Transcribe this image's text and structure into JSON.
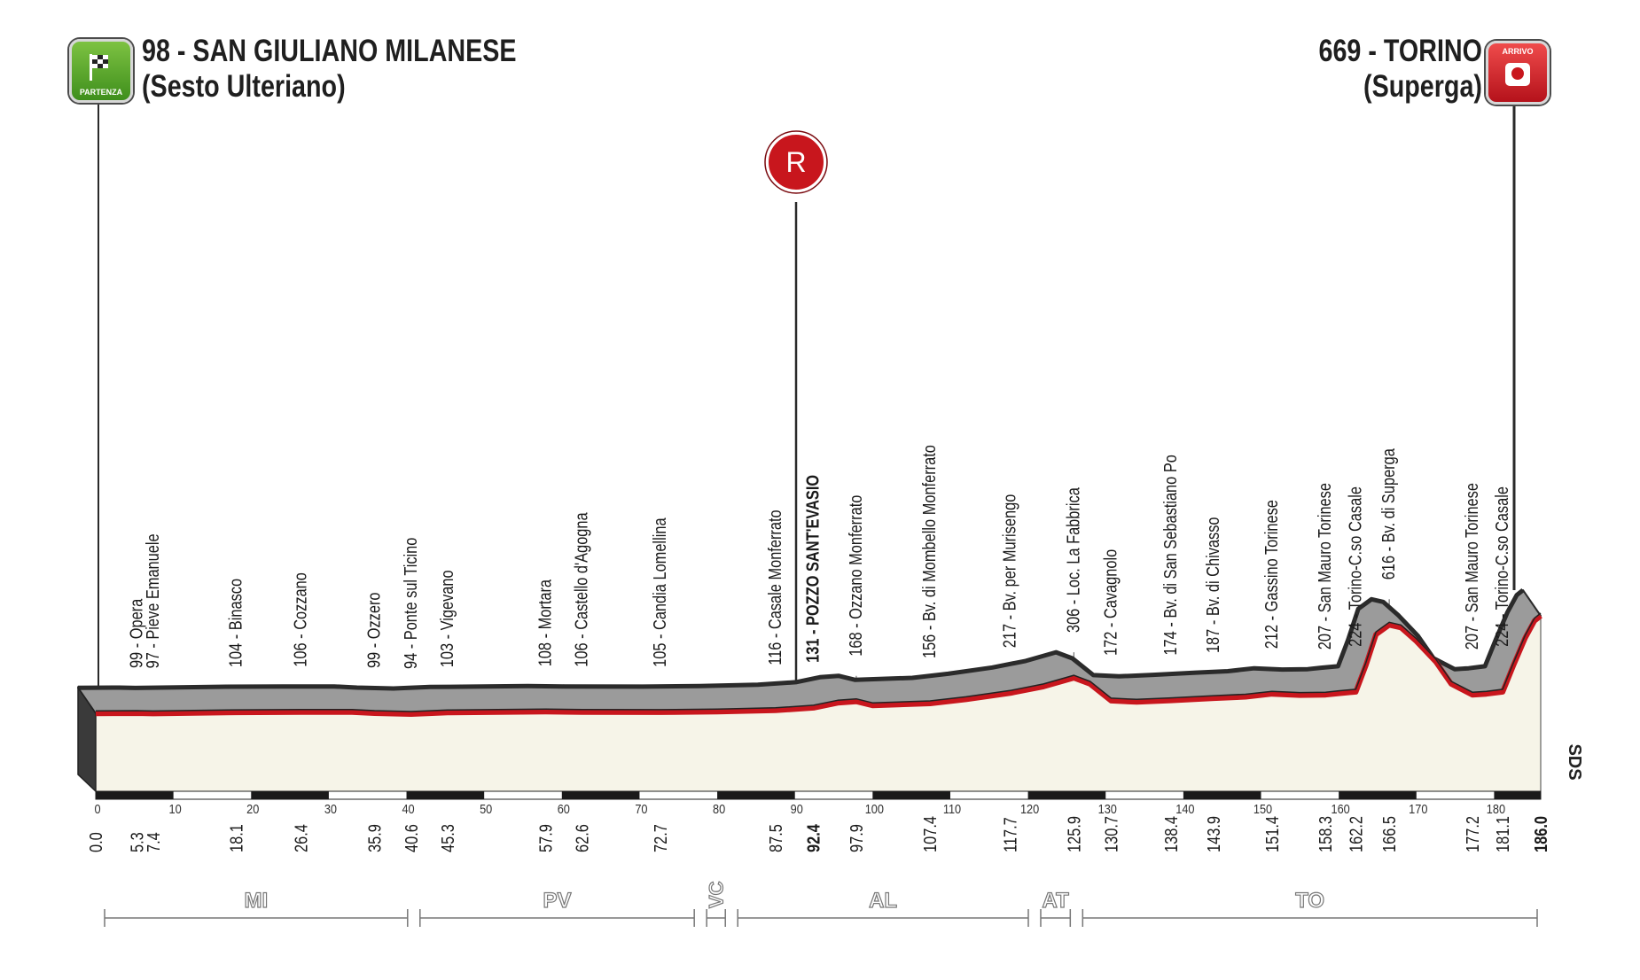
{
  "start": {
    "badge_label": "PARTENZA",
    "title": "98 - SAN GIULIANO MILANESE",
    "subtitle": "(Sesto Ulteriano)"
  },
  "finish": {
    "badge_label": "ARRIVO",
    "title": "669 - TORINO",
    "subtitle": "(Superga)"
  },
  "sprint_marker": {
    "letter": "R",
    "km": 92.4
  },
  "sds_label": "SDS",
  "colors": {
    "road_red": "#c8161d",
    "profile_gray": "#9b9b9b",
    "profile_dark": "#2b2b2b",
    "ground": "#f6f4e8",
    "start_green": "#5aa02c",
    "finish_red": "#d3202a"
  },
  "chart_data": {
    "type": "area",
    "title": "98 - SAN GIULIANO MILANESE (Sesto Ulteriano) - 669 - TORINO (Superga)",
    "xlabel": "",
    "ylabel": "",
    "xlim": [
      0,
      186
    ],
    "x_ticks": [
      0,
      10,
      20,
      30,
      40,
      50,
      60,
      70,
      80,
      90,
      100,
      110,
      120,
      130,
      140,
      150,
      160,
      170,
      180
    ],
    "km_markers": [
      {
        "label": "0.0",
        "bold": false
      },
      {
        "label": "5.3",
        "bold": false
      },
      {
        "label": "7.4",
        "bold": false
      },
      {
        "label": "18.1",
        "bold": false
      },
      {
        "label": "26.4",
        "bold": false
      },
      {
        "label": "35.9",
        "bold": false
      },
      {
        "label": "40.6",
        "bold": false
      },
      {
        "label": "45.3",
        "bold": false
      },
      {
        "label": "57.9",
        "bold": false
      },
      {
        "label": "62.6",
        "bold": false
      },
      {
        "label": "72.7",
        "bold": false
      },
      {
        "label": "87.5",
        "bold": false
      },
      {
        "label": "92.4",
        "bold": true
      },
      {
        "label": "97.9",
        "bold": false
      },
      {
        "label": "107.4",
        "bold": false
      },
      {
        "label": "117.7",
        "bold": false
      },
      {
        "label": "125.9",
        "bold": false
      },
      {
        "label": "130.7",
        "bold": false
      },
      {
        "label": "138.4",
        "bold": false
      },
      {
        "label": "143.9",
        "bold": false
      },
      {
        "label": "151.4",
        "bold": false
      },
      {
        "label": "158.3",
        "bold": false
      },
      {
        "label": "162.2",
        "bold": false
      },
      {
        "label": "166.5",
        "bold": false
      },
      {
        "label": "177.2",
        "bold": false
      },
      {
        "label": "181.1",
        "bold": false
      },
      {
        "label": "186.0",
        "bold": true
      }
    ],
    "places": [
      {
        "km": 5.3,
        "label": "99 - Opera",
        "bold": false
      },
      {
        "km": 7.4,
        "label": "97 - Pieve Emanuele",
        "bold": false
      },
      {
        "km": 18.1,
        "label": "104 - Binasco",
        "bold": false
      },
      {
        "km": 26.4,
        "label": "106 - Cozzano",
        "bold": false
      },
      {
        "km": 35.9,
        "label": "99 - Ozzero",
        "bold": false
      },
      {
        "km": 40.6,
        "label": "94 - Ponte sul Ticino",
        "bold": false
      },
      {
        "km": 45.3,
        "label": "103 - Vigevano",
        "bold": false
      },
      {
        "km": 57.9,
        "label": "108 - Mortara",
        "bold": false
      },
      {
        "km": 62.6,
        "label": "106 - Castello d'Agogna",
        "bold": false
      },
      {
        "km": 72.7,
        "label": "105 - Candia Lomellina",
        "bold": false
      },
      {
        "km": 87.5,
        "label": "116 - Casale Monferrato",
        "bold": false
      },
      {
        "km": 92.4,
        "label": "131 - POZZO SANT'EVASIO",
        "bold": true
      },
      {
        "km": 97.9,
        "label": "168 - Ozzano Monferrato",
        "bold": false
      },
      {
        "km": 107.4,
        "label": "156 - Bv. di Mombello Monferrato",
        "bold": false
      },
      {
        "km": 117.7,
        "label": "217 - Bv. per Murisengo",
        "bold": false
      },
      {
        "km": 125.9,
        "label": "306 - Loc. La Fabbrica",
        "bold": false
      },
      {
        "km": 130.7,
        "label": "172 - Cavagnolo",
        "bold": false
      },
      {
        "km": 138.4,
        "label": "174 - Bv. di San Sebastiano Po",
        "bold": false
      },
      {
        "km": 143.9,
        "label": "187 - Bv. di Chivasso",
        "bold": false
      },
      {
        "km": 151.4,
        "label": "212 - Gassino Torinese",
        "bold": false
      },
      {
        "km": 158.3,
        "label": "207 - San Mauro Torinese",
        "bold": false
      },
      {
        "km": 162.2,
        "label": "224 - Torino-C.so Casale",
        "bold": false
      },
      {
        "km": 166.5,
        "label": "616 - Bv. di Superga",
        "bold": false
      },
      {
        "km": 177.2,
        "label": "207 - San Mauro Torinese",
        "bold": false
      },
      {
        "km": 181.1,
        "label": "224 - Torino-C.so Casale",
        "bold": false
      }
    ],
    "elevation_profile": [
      [
        0,
        98
      ],
      [
        5.3,
        99
      ],
      [
        7.4,
        97
      ],
      [
        18.1,
        104
      ],
      [
        26.4,
        106
      ],
      [
        33,
        106
      ],
      [
        35.9,
        99
      ],
      [
        40.6,
        94
      ],
      [
        45.3,
        103
      ],
      [
        57.9,
        108
      ],
      [
        62.6,
        106
      ],
      [
        72.7,
        105
      ],
      [
        80,
        108
      ],
      [
        87.5,
        116
      ],
      [
        92.4,
        131
      ],
      [
        95.5,
        160
      ],
      [
        97.9,
        168
      ],
      [
        100,
        145
      ],
      [
        107.4,
        156
      ],
      [
        112,
        180
      ],
      [
        117.7,
        217
      ],
      [
        122,
        255
      ],
      [
        125.9,
        306
      ],
      [
        128,
        270
      ],
      [
        130.7,
        172
      ],
      [
        134,
        165
      ],
      [
        138.4,
        174
      ],
      [
        143.9,
        187
      ],
      [
        148,
        195
      ],
      [
        151.4,
        212
      ],
      [
        155,
        205
      ],
      [
        158.3,
        207
      ],
      [
        160,
        215
      ],
      [
        162.2,
        224
      ],
      [
        163.5,
        380
      ],
      [
        164.8,
        560
      ],
      [
        166.5,
        616
      ],
      [
        168,
        600
      ],
      [
        170,
        520
      ],
      [
        172.5,
        400
      ],
      [
        174.5,
        270
      ],
      [
        177.2,
        207
      ],
      [
        179,
        212
      ],
      [
        181.1,
        224
      ],
      [
        182.5,
        380
      ],
      [
        184,
        540
      ],
      [
        185.2,
        640
      ],
      [
        186,
        669
      ]
    ],
    "provinces": [
      {
        "label": "MI",
        "from": 0,
        "to": 40.6
      },
      {
        "label": "PV",
        "from": 40.6,
        "to": 77.5
      },
      {
        "label": "VC",
        "from": 77.5,
        "to": 81.5
      },
      {
        "label": "AL",
        "from": 81.5,
        "to": 120.5
      },
      {
        "label": "AT",
        "from": 120.5,
        "to": 125.9
      },
      {
        "label": "TO",
        "from": 125.9,
        "to": 186
      }
    ]
  }
}
